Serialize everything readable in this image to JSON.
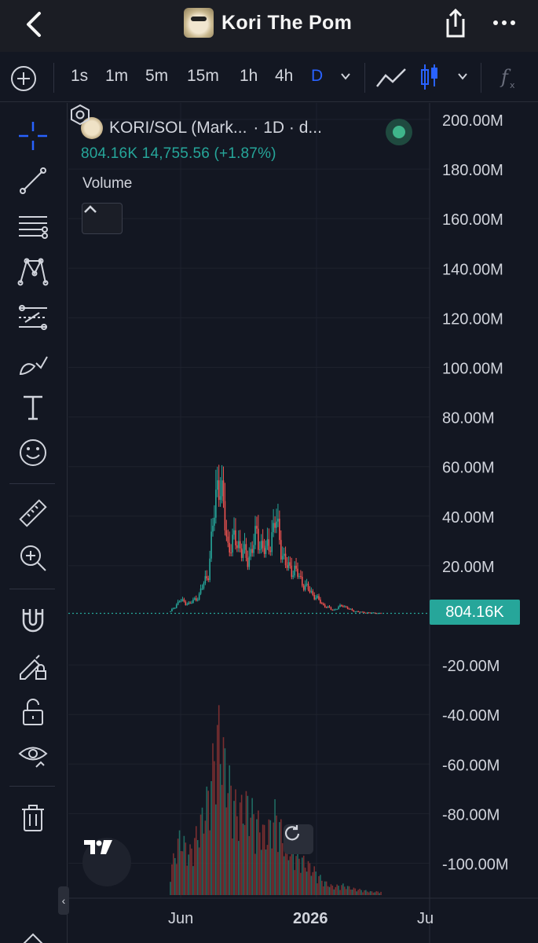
{
  "header": {
    "title": "Kori The Pom",
    "back_icon": "chevron-left-icon",
    "share_icon": "share-icon",
    "more_icon": "more-dots-icon"
  },
  "toolbar": {
    "add_icon": "plus-circle-icon",
    "timeframes": [
      "1s",
      "1m",
      "5m",
      "15m",
      "1h",
      "4h",
      "D"
    ],
    "active_timeframe": "D",
    "chart_type_icons": [
      "line-chart-icon",
      "candle-chart-icon"
    ],
    "indicators_icon": "fx-icon"
  },
  "left_tools": [
    "crosshair-icon",
    "trend-line-icon",
    "fib-levels-icon",
    "pattern-icon",
    "projection-icon",
    "brush-icon",
    "text-icon",
    "emoji-icon",
    "ruler-icon",
    "zoom-icon",
    "magnet-icon",
    "lock-drawing-icon",
    "unlock-icon",
    "visibility-icon",
    "trash-icon"
  ],
  "legend": {
    "symbol": "KORI/SOL (Mark...",
    "interval": "· 1D · d...",
    "last_value": "804.16K",
    "change": "14,755.56 (+1.87%)",
    "volume_label": "Volume"
  },
  "price_tag": "804.16K",
  "colors": {
    "up": "#26a69a",
    "down": "#ef5350",
    "accent": "#2962ff",
    "background": "#131722"
  },
  "chart_data": {
    "type": "candlestick",
    "symbol": "KORI/SOL",
    "y_ticks": [
      "200.00M",
      "180.00M",
      "160.00M",
      "140.00M",
      "120.00M",
      "100.00M",
      "80.00M",
      "60.00M",
      "40.00M",
      "20.00M",
      "-20.00M",
      "-40.00M",
      "-60.00M",
      "-80.00M",
      "-100.00M"
    ],
    "y_tick_values": [
      200,
      180,
      160,
      140,
      120,
      100,
      80,
      60,
      40,
      20,
      -20,
      -40,
      -60,
      -80,
      -100
    ],
    "x_ticks": [
      "Jun",
      "2026",
      "Ju"
    ],
    "ylim": [
      -105,
      205
    ],
    "y_unit": "M",
    "last_price_m": 0.804,
    "price_series": [
      {
        "period": "May-late",
        "price_m": 1.5
      },
      {
        "period": "Jun-early",
        "price_m": 6.0
      },
      {
        "period": "Jun-mid",
        "price_m": 4.5
      },
      {
        "period": "Jun-late",
        "price_m": 8.0
      },
      {
        "period": "Jul-early",
        "price_m": 18.0
      },
      {
        "period": "Jul-peak",
        "price_m": 58.0
      },
      {
        "period": "Jul-late",
        "price_m": 28.0
      },
      {
        "period": "Aug-early",
        "price_m": 30.0
      },
      {
        "period": "Aug-mid",
        "price_m": 22.0
      },
      {
        "period": "Aug-late",
        "price_m": 32.0
      },
      {
        "period": "Sep-early",
        "price_m": 25.0
      },
      {
        "period": "Sep-mid",
        "price_m": 38.0
      },
      {
        "period": "Sep-late",
        "price_m": 20.0
      },
      {
        "period": "Oct-early",
        "price_m": 18.0
      },
      {
        "period": "Oct-mid",
        "price_m": 12.0
      },
      {
        "period": "Oct-late",
        "price_m": 8.0
      },
      {
        "period": "Nov",
        "price_m": 4.0
      },
      {
        "period": "Dec",
        "price_m": 2.0
      },
      {
        "period": "Jan",
        "price_m": 4.0
      },
      {
        "period": "Feb",
        "price_m": 1.8
      },
      {
        "period": "Mar",
        "price_m": 1.2
      },
      {
        "period": "Apr",
        "price_m": 1.0
      },
      {
        "period": "May",
        "price_m": 0.8
      }
    ],
    "volume_relative": [
      0.15,
      0.35,
      0.25,
      0.4,
      0.6,
      1.0,
      0.7,
      0.5,
      0.55,
      0.45,
      0.35,
      0.5,
      0.3,
      0.25,
      0.2,
      0.15,
      0.08,
      0.05,
      0.06,
      0.04,
      0.03,
      0.02,
      0.02
    ]
  }
}
